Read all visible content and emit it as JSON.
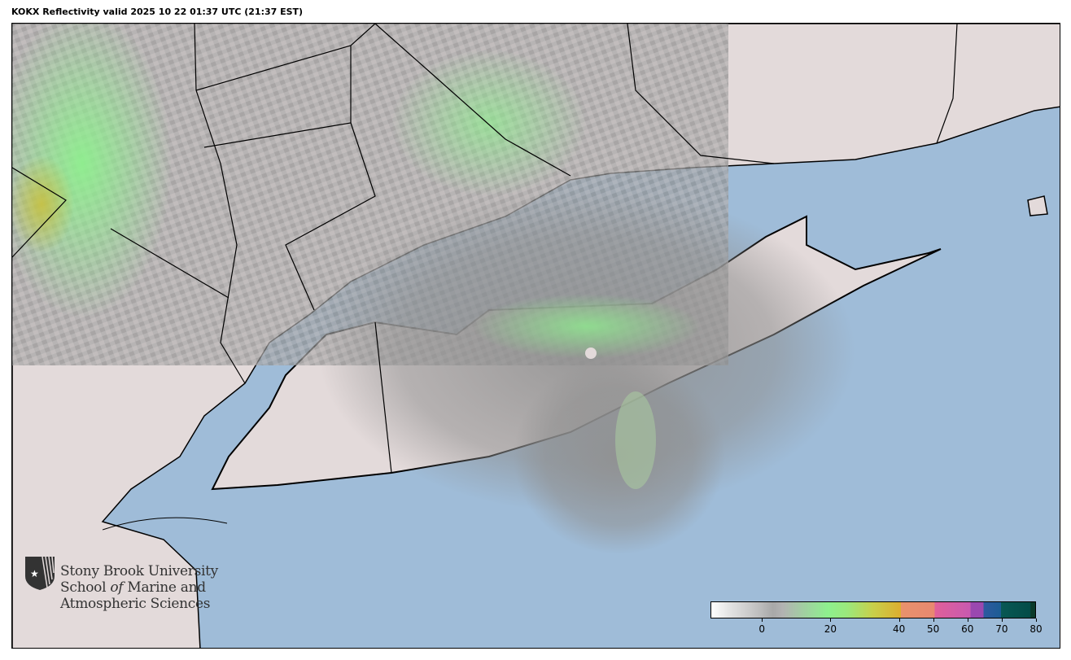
{
  "title": "KOKX Reflectivity valid 2025 10 22 01:37 UTC (21:37 EST)",
  "colors": {
    "ocean": "#9fbcd8",
    "land": "#e3dada",
    "radar_gray": "#9a9a9a",
    "radar_green": "#8ef08e",
    "border": "#000000"
  },
  "logo": {
    "line1": "Stony Brook University",
    "line2_a": "School ",
    "line2_of": "of",
    "line2_b": " Marine and",
    "line3": "Atmospheric Sciences",
    "icon": "shield-star-icon"
  },
  "colorbar": {
    "range": [
      -15,
      80
    ],
    "ticks": [
      {
        "value": 0,
        "label": "0"
      },
      {
        "value": 20,
        "label": "20"
      },
      {
        "value": 40,
        "label": "40"
      },
      {
        "value": 50,
        "label": "50"
      },
      {
        "value": 60,
        "label": "60"
      },
      {
        "value": 70,
        "label": "70"
      },
      {
        "value": 80,
        "label": "80"
      }
    ]
  }
}
